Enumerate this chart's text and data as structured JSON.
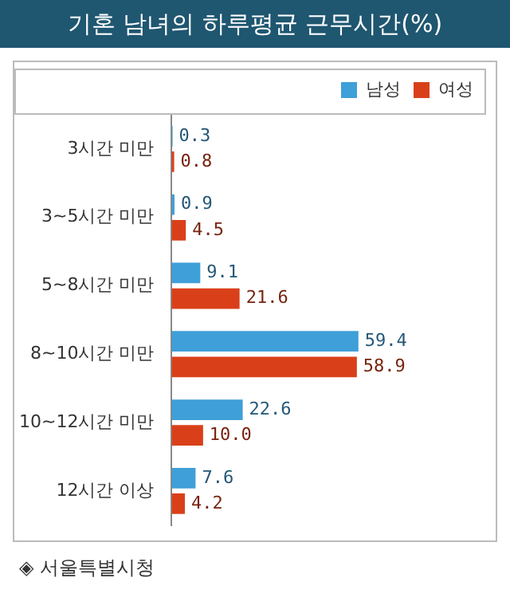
{
  "chart_data": {
    "type": "bar",
    "orientation": "horizontal",
    "title": "기혼 남녀의 하루평균 근무시간(%)",
    "categories": [
      "3시간 미만",
      "3~5시간 미만",
      "5~8시간 미만",
      "8~10시간 미만",
      "10~12시간 미만",
      "12시간 이상"
    ],
    "series": [
      {
        "name": "남성",
        "color": "#3f9fd8",
        "values": [
          0.3,
          0.9,
          9.1,
          59.4,
          22.6,
          7.6
        ],
        "value_labels": [
          "0.3",
          "0.9",
          "9.1",
          "59.4",
          "22.6",
          "7.6"
        ]
      },
      {
        "name": "여성",
        "color": "#d9401a",
        "values": [
          0.8,
          4.5,
          21.6,
          58.9,
          10.0,
          4.2
        ],
        "value_labels": [
          "0.8",
          "4.5",
          "21.6",
          "58.9",
          "10.0",
          "4.2"
        ]
      }
    ],
    "tick_labels": "y",
    "legend": "top right",
    "annotations": [
      "◈ 서울특별시청"
    ]
  }
}
